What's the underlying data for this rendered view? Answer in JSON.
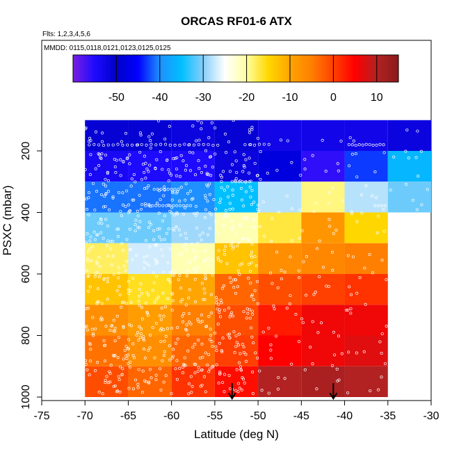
{
  "chart_data": {
    "type": "heatmap",
    "title": "ORCAS RF01-6 ATX",
    "subtitle_flights": "Flts: 1,2,3,4,5,6",
    "subtitle_dates": "MMDD: 0115,0118,0121,0123,0125,0125",
    "xlabel": "Latitude (deg N)",
    "ylabel": "PSXC (mbar)",
    "xlim": [
      -75,
      -30
    ],
    "ylim": [
      1000,
      0
    ],
    "x_ticks": [
      -75,
      -70,
      -65,
      -60,
      -55,
      -50,
      -45,
      -40,
      -35,
      -30
    ],
    "y_ticks": [
      200,
      400,
      600,
      800,
      1000
    ],
    "colorbar": {
      "range": [
        -60,
        15
      ],
      "ticks": [
        -50,
        -40,
        -30,
        -20,
        -10,
        0,
        10
      ],
      "palette": [
        "#7a1ee0",
        "#1e0aff",
        "#0000c8",
        "#0000ff",
        "#1e90ff",
        "#00bfff",
        "#87cefa",
        "#ffffff",
        "#ffffa0",
        "#ffd700",
        "#ffa500",
        "#ff7f00",
        "#ff4000",
        "#ff0000",
        "#b22222",
        "#8b1a1a"
      ]
    },
    "lat_bins": [
      -70,
      -65,
      -60,
      -55,
      -50,
      -45,
      -40,
      -35,
      -30
    ],
    "p_bins": [
      100,
      200,
      300,
      400,
      500,
      600,
      700,
      800,
      900,
      1000
    ],
    "cells": [
      [
        -51,
        -51,
        -52,
        -51,
        -53,
        -53,
        -53,
        -52
      ],
      [
        -54,
        -55,
        -55,
        -52,
        -48,
        -56,
        -43,
        -36
      ],
      [
        -41,
        -41,
        -40,
        -35,
        -28,
        -19,
        -28,
        -31
      ],
      [
        -31,
        -31,
        -29,
        -21,
        -17,
        -8,
        -15,
        null
      ],
      [
        -18,
        -27,
        -21,
        -13,
        -7,
        -6,
        -5,
        null
      ],
      [
        -13,
        -16,
        -10,
        -3,
        -1,
        0,
        1,
        null
      ],
      [
        -7,
        -9,
        -5,
        -1,
        3,
        6,
        6,
        null
      ],
      [
        -4,
        -7,
        -3,
        0,
        5,
        6,
        7,
        null
      ],
      [
        -1,
        -3,
        1,
        4,
        10,
        11,
        10,
        null
      ]
    ],
    "arrows_lat": [
      -53,
      -41.3
    ],
    "point_density": 25
  }
}
